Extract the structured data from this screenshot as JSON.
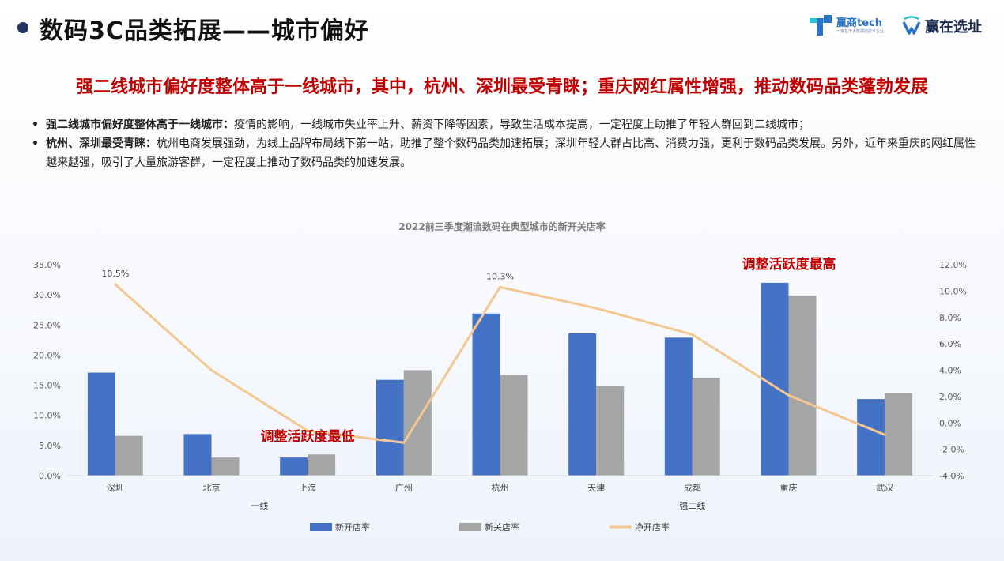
{
  "header": {
    "title": "数码3C品类拓展——城市偏好",
    "logos": {
      "winshang_tech": "赢商tech",
      "winshang_tech_tagline": "一家基于大数据的技术企业",
      "ying_zai_xuan_zhi": "赢在选址"
    }
  },
  "headline": "强二线城市偏好度整体高于一线城市，其中，杭州、深圳最受青睐；重庆网红属性增强，推动数码品类蓬勃发展",
  "bullets": [
    {
      "strong": "强二线城市偏好度整体高于一线城市：",
      "text": "疫情的影响，一线城市失业率上升、薪资下降等因素，导致生活成本提高，一定程度上助推了年轻人群回到二线城市；"
    },
    {
      "strong": "杭州、深圳最受青睐：",
      "text": "杭州电商发展强劲，为线上品牌布局线下第一站，助推了整个数码品类加速拓展；深圳年轻人群占比高、消费力强，更利于数码品类发展。另外，近年来重庆的网红属性越来越强，吸引了大量旅游客群，一定程度上推动了数码品类的加速发展。"
    }
  ],
  "chart_data": {
    "type": "bar",
    "title": "2022前三季度潮流数码在典型城市的新开关店率",
    "categories": [
      "深圳",
      "北京",
      "上海",
      "广州",
      "杭州",
      "天津",
      "成都",
      "重庆",
      "武汉"
    ],
    "groups": [
      {
        "label": "一线",
        "categories": [
          "深圳",
          "北京",
          "上海",
          "广州"
        ]
      },
      {
        "label": "强二线",
        "categories": [
          "杭州",
          "天津",
          "成都",
          "重庆",
          "武汉"
        ]
      }
    ],
    "series": [
      {
        "name": "新开店率",
        "type": "bar",
        "axis": "left",
        "color": "#4472c4",
        "values": [
          17.1,
          6.9,
          3.0,
          15.9,
          26.9,
          23.6,
          22.9,
          32.0,
          12.7
        ]
      },
      {
        "name": "新关店率",
        "type": "bar",
        "axis": "left",
        "color": "#a5a5a5",
        "values": [
          6.6,
          3.0,
          3.5,
          17.5,
          16.7,
          14.9,
          16.2,
          29.9,
          13.7
        ]
      },
      {
        "name": "净开店率",
        "type": "line",
        "axis": "right",
        "color": "#f4c791",
        "values": [
          10.5,
          4.0,
          -0.6,
          -1.5,
          10.3,
          8.7,
          6.7,
          2.1,
          -0.9
        ]
      }
    ],
    "data_labels": [
      {
        "series": "净开店率",
        "category": "深圳",
        "text": "10.5%"
      },
      {
        "series": "净开店率",
        "category": "杭州",
        "text": "10.3%"
      }
    ],
    "annotations": [
      {
        "text": "调整活跃度最高",
        "near": "重庆"
      },
      {
        "text": "调整活跃度最低",
        "near": "上海"
      }
    ],
    "y_left": {
      "min": 0,
      "max": 35,
      "step": 5,
      "ticks": [
        "0.0%",
        "5.0%",
        "10.0%",
        "15.0%",
        "20.0%",
        "25.0%",
        "30.0%",
        "35.0%"
      ]
    },
    "y_right": {
      "min": -4,
      "max": 12,
      "step": 2,
      "ticks": [
        "-4.0%",
        "-2.0%",
        "0.0%",
        "2.0%",
        "4.0%",
        "6.0%",
        "8.0%",
        "10.0%",
        "12.0%"
      ]
    },
    "grid": false,
    "legend_position": "bottom"
  }
}
